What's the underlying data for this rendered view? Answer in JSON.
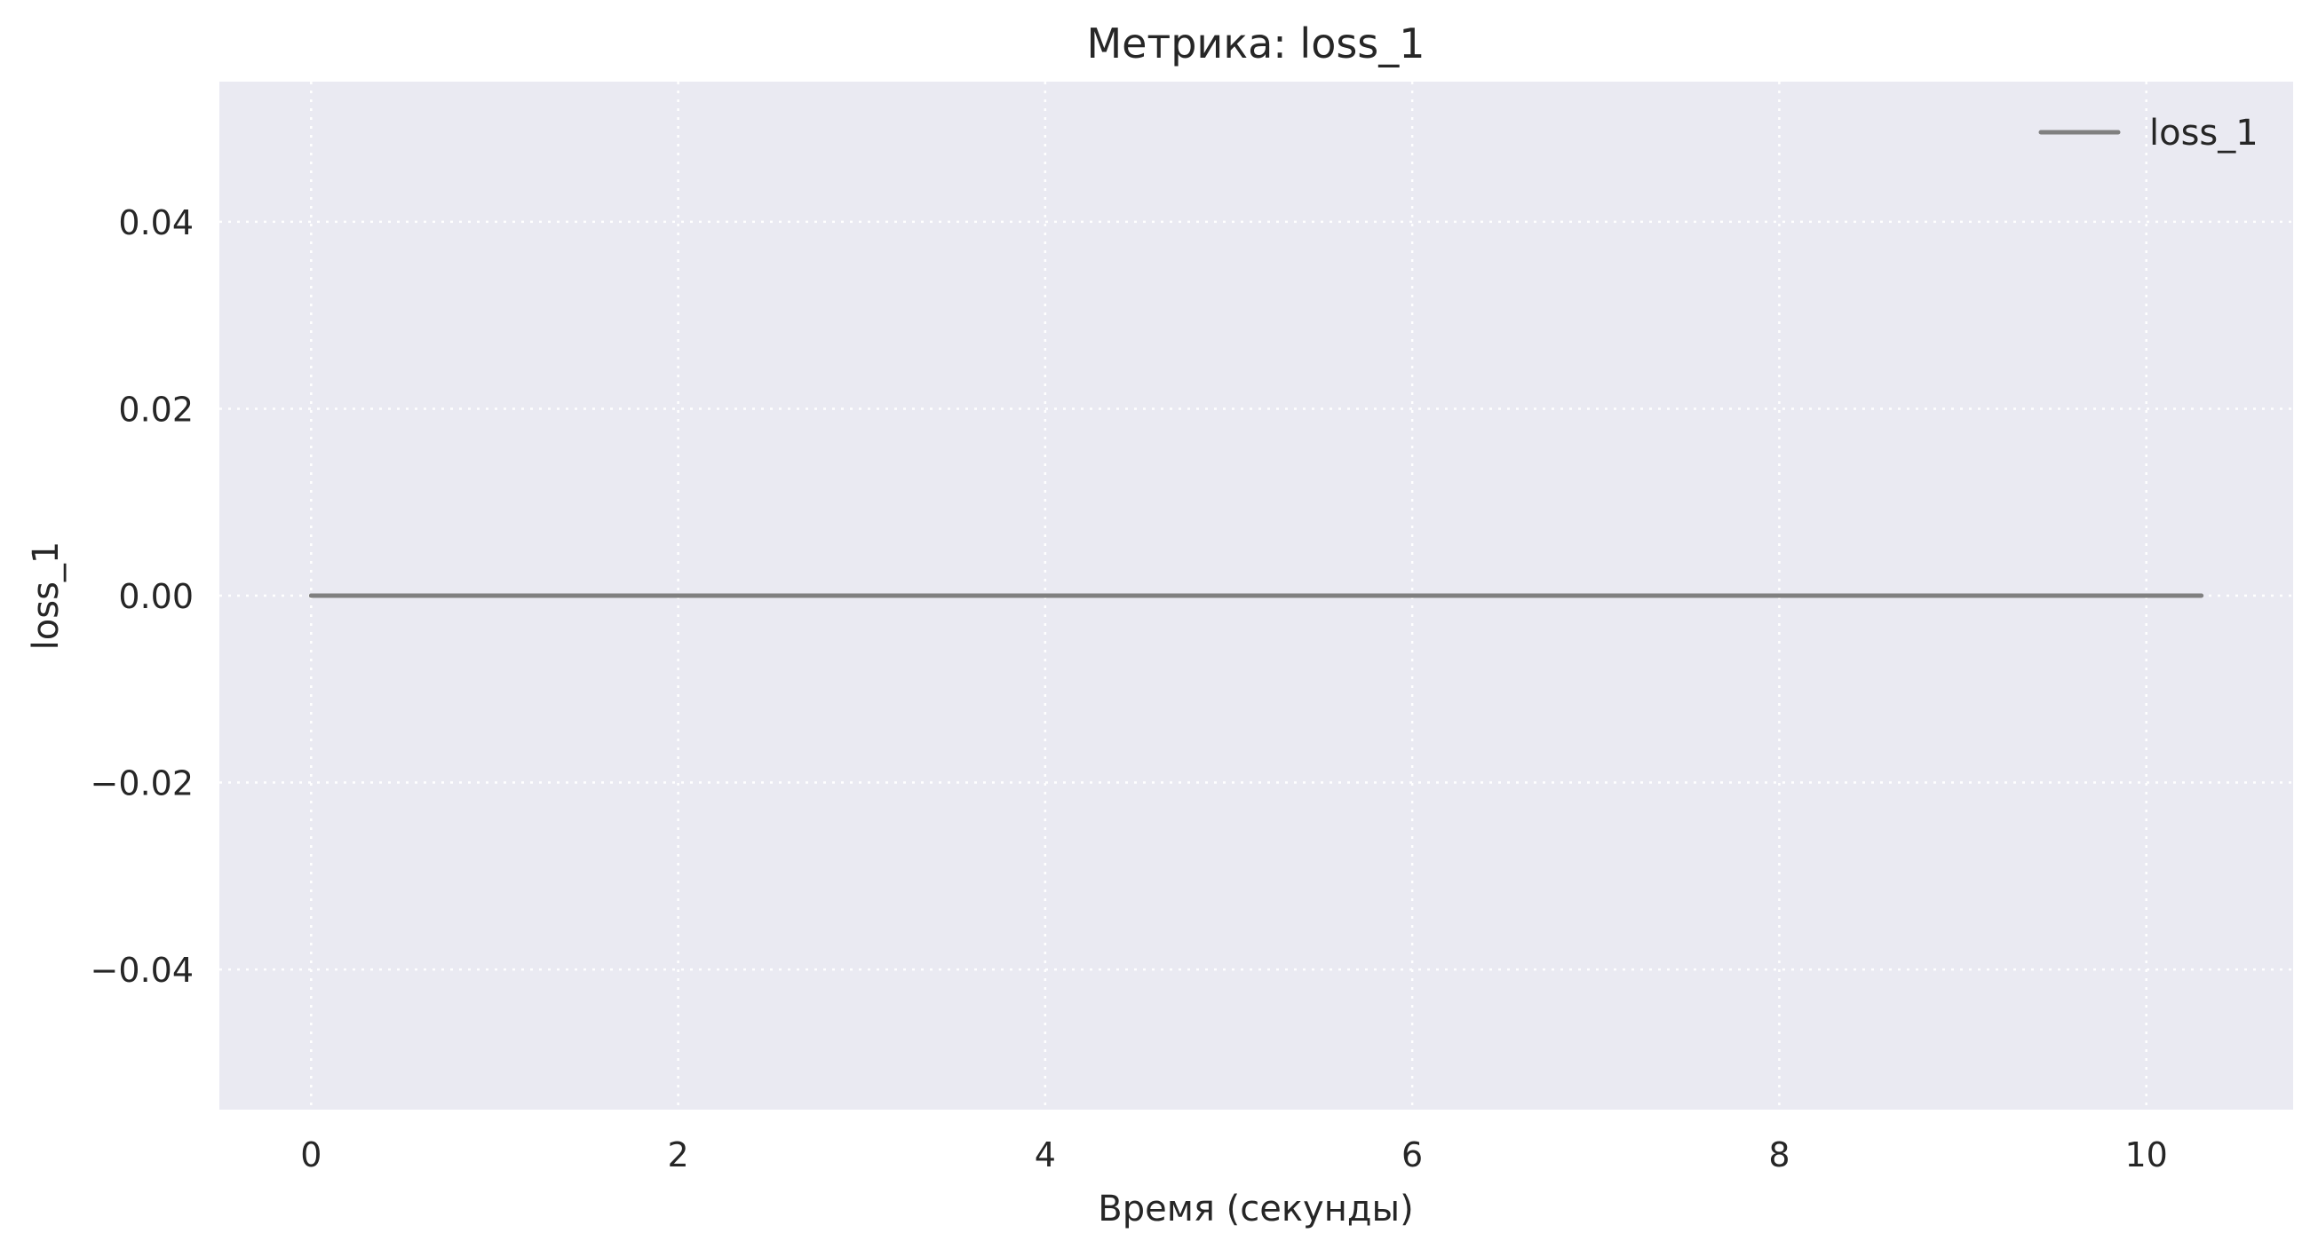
{
  "chart_data": {
    "type": "line",
    "title": "Метрика: loss_1",
    "xlabel": "Время (секунды)",
    "ylabel": "loss_1",
    "xlim": [
      -0.5,
      10.8
    ],
    "ylim": [
      -0.055,
      0.055
    ],
    "x_ticks": [
      0,
      2,
      4,
      6,
      8,
      10
    ],
    "x_tick_labels": [
      "0",
      "2",
      "4",
      "6",
      "8",
      "10"
    ],
    "y_ticks": [
      0.04,
      0.02,
      0.0,
      -0.02,
      -0.04
    ],
    "y_tick_labels": [
      "0.04",
      "0.02",
      "0.00",
      "−0.02",
      "−0.04"
    ],
    "grid": true,
    "legend_position": "top-right",
    "background_color": "#eaeaf2",
    "series": [
      {
        "name": "loss_1",
        "color": "#808080",
        "x": [
          0,
          10.3
        ],
        "y": [
          0,
          0
        ]
      }
    ]
  }
}
